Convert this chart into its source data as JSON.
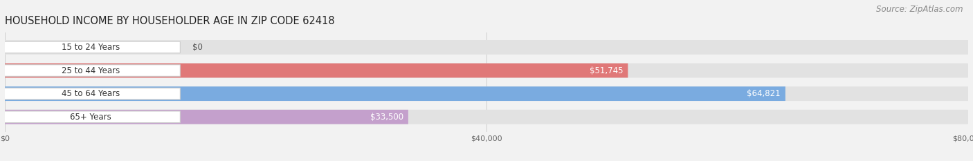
{
  "title": "HOUSEHOLD INCOME BY HOUSEHOLDER AGE IN ZIP CODE 62418",
  "source": "Source: ZipAtlas.com",
  "categories": [
    "15 to 24 Years",
    "25 to 44 Years",
    "45 to 64 Years",
    "65+ Years"
  ],
  "values": [
    0,
    51745,
    64821,
    33500
  ],
  "bar_colors": [
    "#f5c8a0",
    "#e07878",
    "#7aabe0",
    "#c4a0cc"
  ],
  "bg_color": "#f2f2f2",
  "bar_bg_color": "#e2e2e2",
  "bar_bg_color2": "#ebebeb",
  "xlim": [
    0,
    80000
  ],
  "xtick_vals": [
    0,
    40000,
    80000
  ],
  "xtick_labels": [
    "$0",
    "$40,000",
    "$80,000"
  ],
  "value_labels": [
    "$0",
    "$51,745",
    "$64,821",
    "$33,500"
  ],
  "bar_height": 0.62,
  "figsize": [
    14.06,
    2.33
  ],
  "dpi": 100,
  "title_fontsize": 10.5,
  "source_fontsize": 8.5,
  "label_fontsize": 8.5,
  "value_fontsize": 8.5
}
